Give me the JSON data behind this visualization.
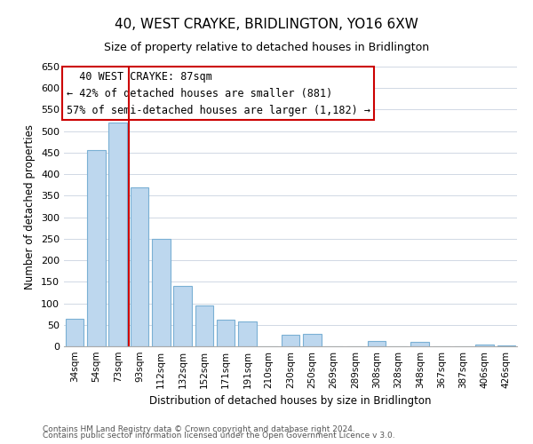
{
  "title": "40, WEST CRAYKE, BRIDLINGTON, YO16 6XW",
  "subtitle": "Size of property relative to detached houses in Bridlington",
  "xlabel": "Distribution of detached houses by size in Bridlington",
  "ylabel": "Number of detached properties",
  "footer_line1": "Contains HM Land Registry data © Crown copyright and database right 2024.",
  "footer_line2": "Contains public sector information licensed under the Open Government Licence v 3.0.",
  "bar_labels": [
    "34sqm",
    "54sqm",
    "73sqm",
    "93sqm",
    "112sqm",
    "132sqm",
    "152sqm",
    "171sqm",
    "191sqm",
    "210sqm",
    "230sqm",
    "250sqm",
    "269sqm",
    "289sqm",
    "308sqm",
    "328sqm",
    "348sqm",
    "367sqm",
    "387sqm",
    "406sqm",
    "426sqm"
  ],
  "bar_values": [
    63,
    457,
    519,
    370,
    250,
    140,
    95,
    62,
    58,
    0,
    27,
    28,
    0,
    0,
    12,
    0,
    10,
    0,
    0,
    5,
    3
  ],
  "bar_color": "#bdd7ee",
  "bar_edge_color": "#7ab0d4",
  "ylim": [
    0,
    650
  ],
  "yticks": [
    0,
    50,
    100,
    150,
    200,
    250,
    300,
    350,
    400,
    450,
    500,
    550,
    600,
    650
  ],
  "vline_x": 2.5,
  "vline_color": "#cc0000",
  "annotation_title": "40 WEST CRAYKE: 87sqm",
  "annotation_line1": "← 42% of detached houses are smaller (881)",
  "annotation_line2": "57% of semi-detached houses are larger (1,182) →",
  "background_color": "#ffffff",
  "grid_color": "#d0d8e4"
}
